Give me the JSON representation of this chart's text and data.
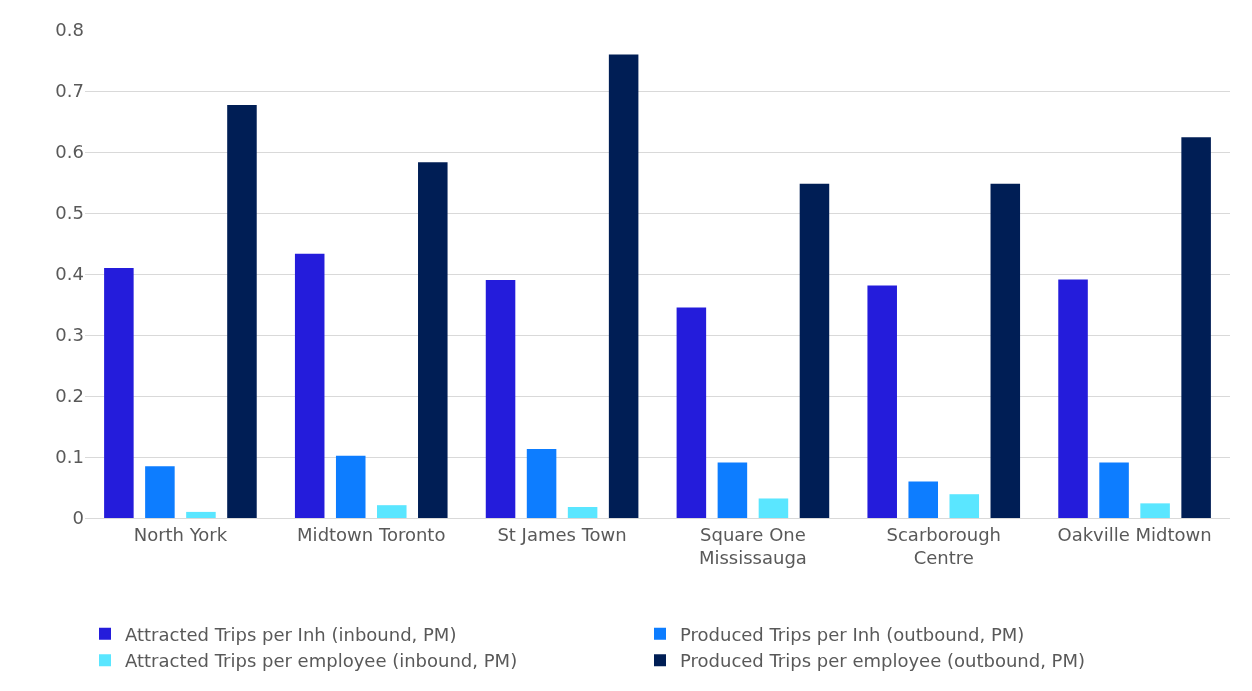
{
  "chart_data": {
    "type": "bar",
    "categories": [
      "North York",
      "Midtown Toronto",
      "St James Town",
      "Square One\nMississauga",
      "Scarborough\nCentre",
      "Oakville Midtown"
    ],
    "series": [
      {
        "name": "Attracted Trips per Inh (inbound, PM)",
        "color": "#241cdb",
        "values": [
          0.41,
          0.433,
          0.39,
          0.345,
          0.381,
          0.391
        ]
      },
      {
        "name": "Produced Trips per Inh (outbound, PM)",
        "color": "#0d7dff",
        "values": [
          0.085,
          0.102,
          0.113,
          0.091,
          0.06,
          0.091
        ]
      },
      {
        "name": "Attracted Trips per employee (inbound, PM)",
        "color": "#5ae6ff",
        "values": [
          0.01,
          0.021,
          0.018,
          0.032,
          0.039,
          0.024
        ]
      },
      {
        "name": "Produced Trips per employee (outbound, PM)",
        "color": "#001e55",
        "values": [
          0.677,
          0.583,
          0.76,
          0.548,
          0.548,
          0.624
        ]
      }
    ],
    "ylim": [
      0,
      0.8
    ],
    "yticks": [
      0,
      0.1,
      0.2,
      0.3,
      0.4,
      0.5,
      0.6,
      0.7,
      0.8
    ],
    "grid": "y",
    "legend": "bottom"
  }
}
